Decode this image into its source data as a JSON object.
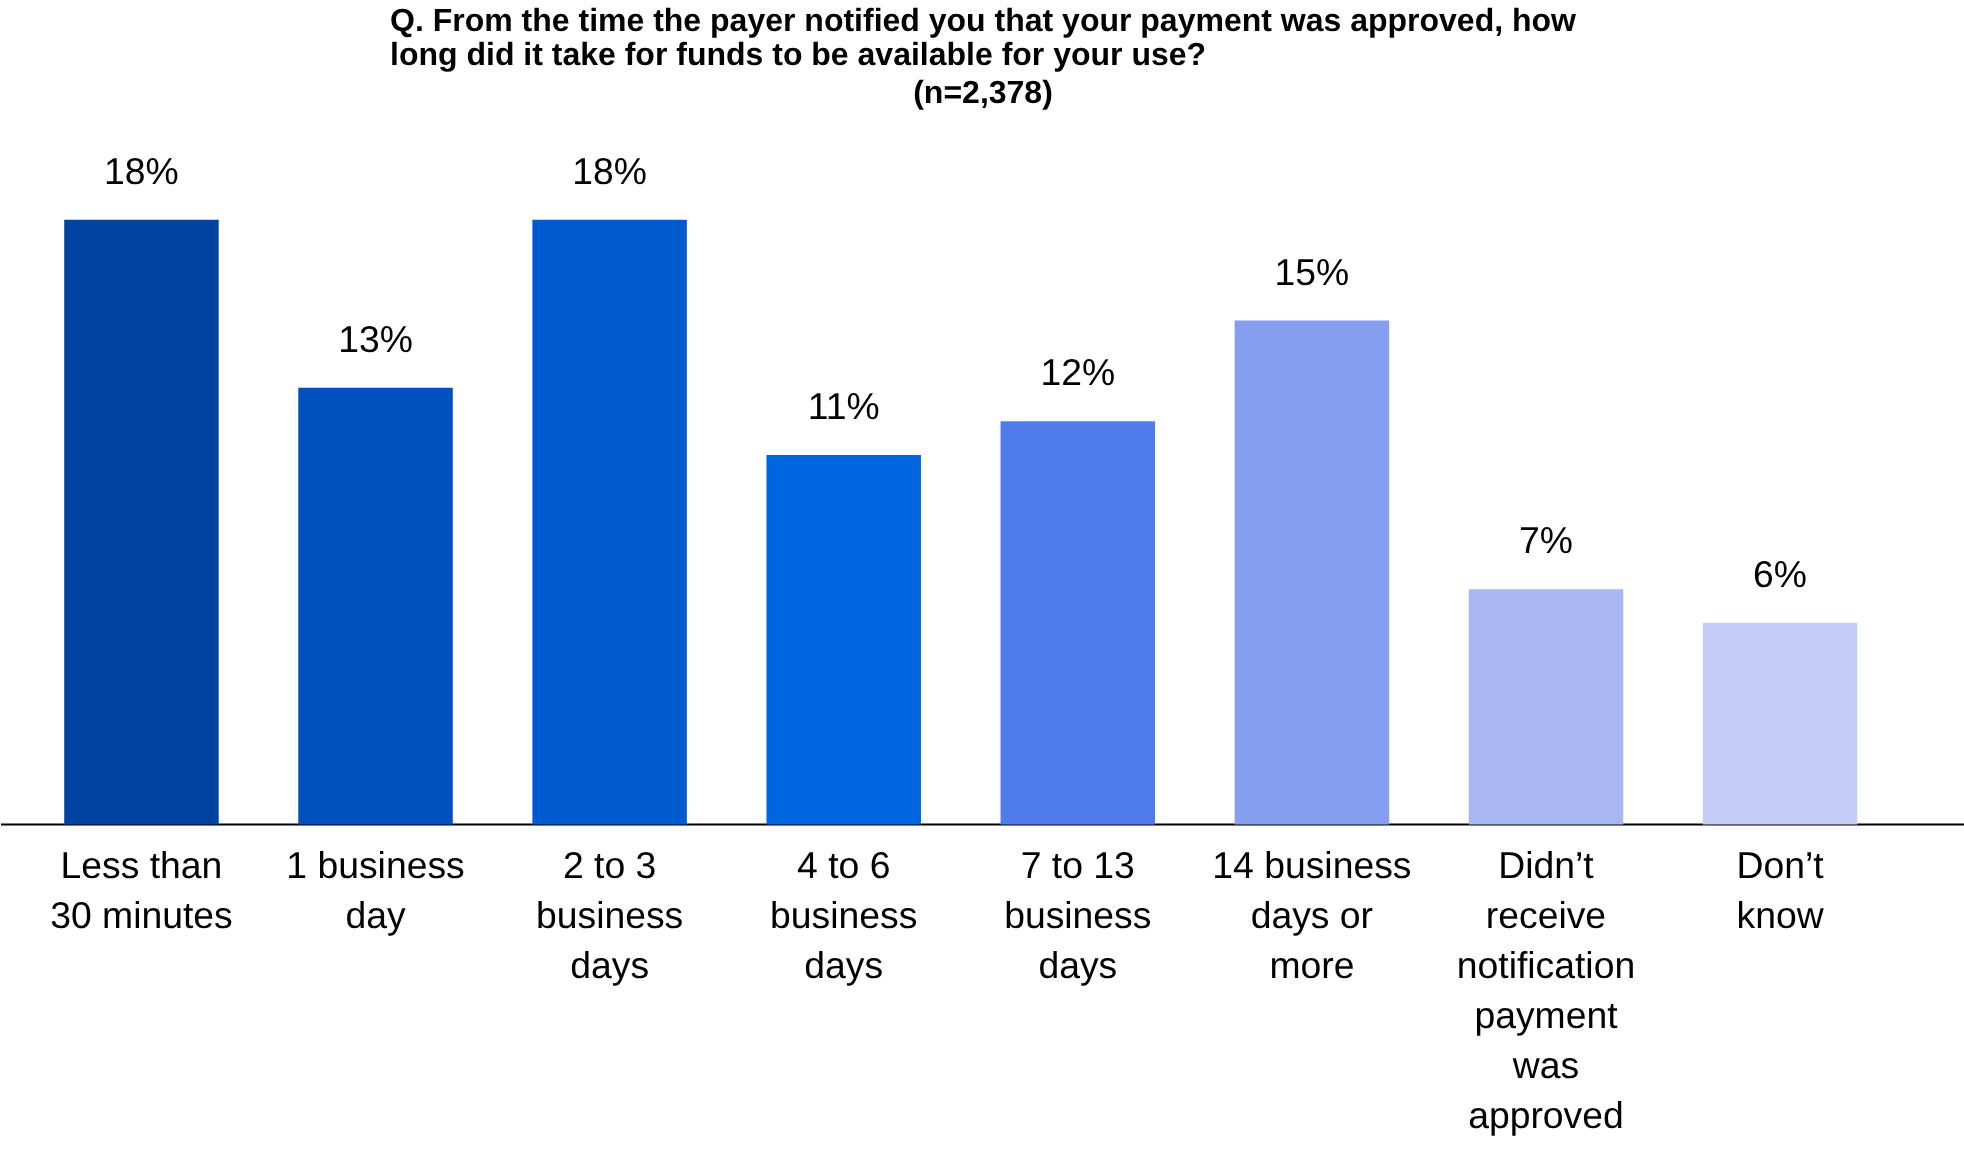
{
  "chart_data": {
    "type": "bar",
    "title": "Q. From the time the payer notified you that your payment was approved, how\nlong did it take for funds to be available for your use?",
    "subtitle": "(n=2,378)",
    "categories": [
      "Less than\n30 minutes",
      "1 business\nday",
      "2 to 3\nbusiness\ndays",
      "4 to 6\nbusiness\ndays",
      "7 to 13\nbusiness\ndays",
      "14 business\ndays or\nmore",
      "Didn’t\nreceive\nnotification\npayment\nwas\napproved",
      "Don’t\nknow"
    ],
    "values": [
      18,
      13,
      18,
      11,
      12,
      15,
      7,
      6
    ],
    "value_labels": [
      "18%",
      "13%",
      "18%",
      "11%",
      "12%",
      "15%",
      "7%",
      "6%"
    ],
    "colors": [
      "#0044a3",
      "#0050bd",
      "#005ad0",
      "#0066e0",
      "#4f7ceb",
      "#859ef0",
      "#a8b6f2",
      "#c5ccf6"
    ],
    "grid": false
  }
}
